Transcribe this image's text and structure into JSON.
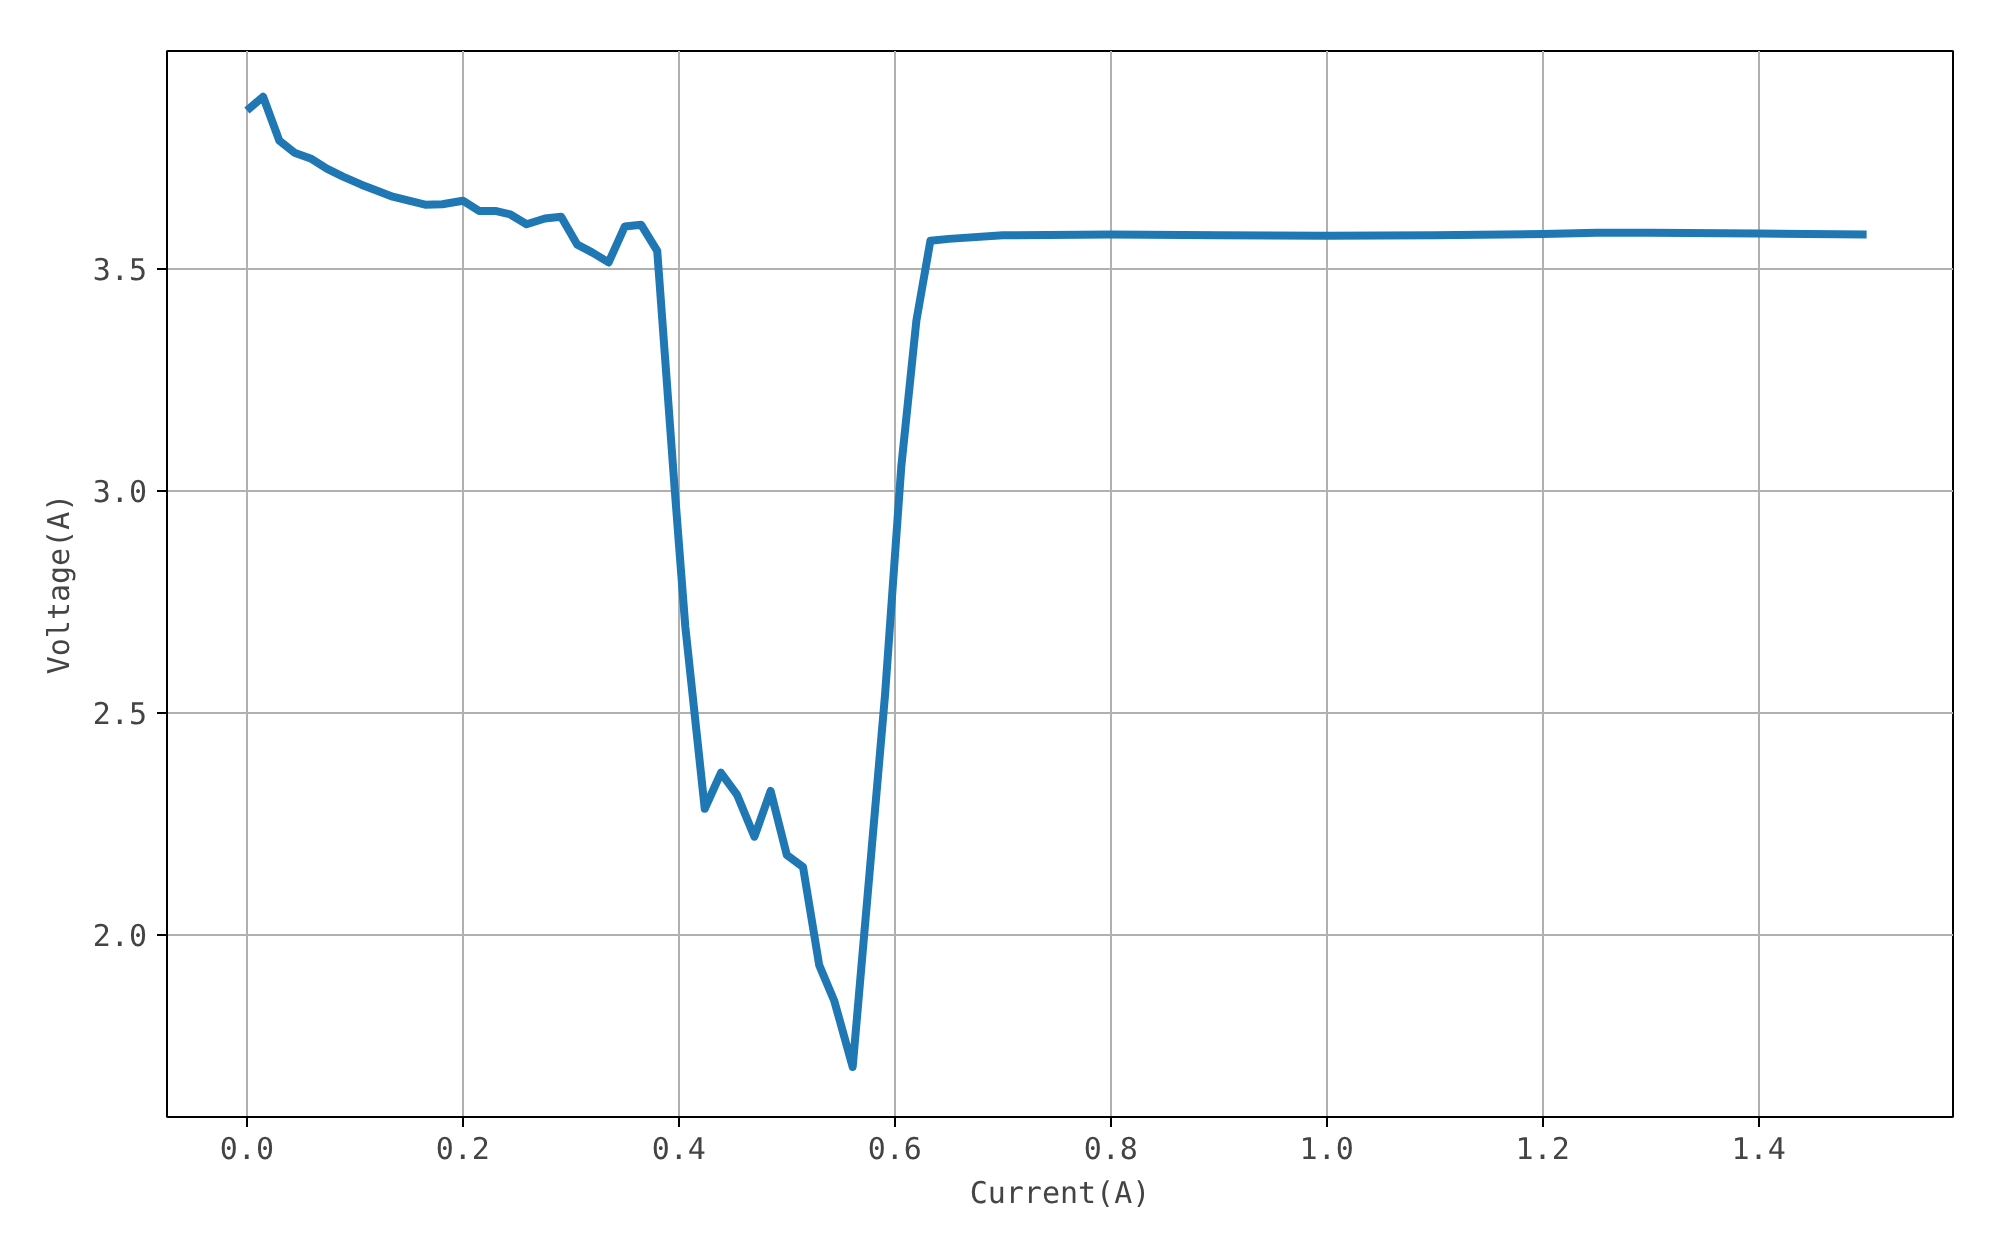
{
  "chart_data": {
    "type": "line",
    "xlabel": "Current(A)",
    "ylabel": "Voltage(A)",
    "x": [
      0.0,
      0.015,
      0.03,
      0.044,
      0.059,
      0.074,
      0.089,
      0.106,
      0.12,
      0.135,
      0.15,
      0.165,
      0.181,
      0.2,
      0.215,
      0.23,
      0.244,
      0.259,
      0.276,
      0.291,
      0.306,
      0.32,
      0.335,
      0.35,
      0.365,
      0.38,
      0.396,
      0.406,
      0.424,
      0.439,
      0.454,
      0.47,
      0.485,
      0.5,
      0.515,
      0.53,
      0.544,
      0.561,
      0.591,
      0.606,
      0.62,
      0.633,
      0.65,
      0.7,
      0.8,
      0.9,
      1.0,
      1.1,
      1.2,
      1.25,
      1.3,
      1.4,
      1.5
    ],
    "series": [
      {
        "color": "#1f77b4",
        "values": [
          3.856,
          3.887,
          3.788,
          3.761,
          3.748,
          3.725,
          3.707,
          3.689,
          3.676,
          3.662,
          3.653,
          3.644,
          3.645,
          3.653,
          3.63,
          3.63,
          3.622,
          3.6,
          3.613,
          3.617,
          3.554,
          3.536,
          3.514,
          3.595,
          3.599,
          3.54,
          3.009,
          2.694,
          2.284,
          2.365,
          2.315,
          2.221,
          2.324,
          2.18,
          2.153,
          1.932,
          1.851,
          1.703,
          2.541,
          3.054,
          3.383,
          3.563,
          3.567,
          3.575,
          3.577,
          3.575,
          3.574,
          3.575,
          3.578,
          3.581,
          3.581,
          3.579,
          3.577
        ]
      }
    ],
    "xlim": [
      -0.074,
      1.58
    ],
    "ylim": [
      1.59,
      3.99
    ],
    "xticks": [
      {
        "value": 0.0,
        "label": "0.0"
      },
      {
        "value": 0.2,
        "label": "0.2"
      },
      {
        "value": 0.4,
        "label": "0.4"
      },
      {
        "value": 0.6,
        "label": "0.6"
      },
      {
        "value": 0.8,
        "label": "0.8"
      },
      {
        "value": 1.0,
        "label": "1.0"
      },
      {
        "value": 1.2,
        "label": "1.2"
      },
      {
        "value": 1.4,
        "label": "1.4"
      }
    ],
    "yticks": [
      {
        "value": 2.0,
        "label": "2.0"
      },
      {
        "value": 2.5,
        "label": "2.5"
      },
      {
        "value": 3.0,
        "label": "3.0"
      },
      {
        "value": 3.5,
        "label": "3.5"
      }
    ],
    "grid": true,
    "line_style": "solid"
  }
}
